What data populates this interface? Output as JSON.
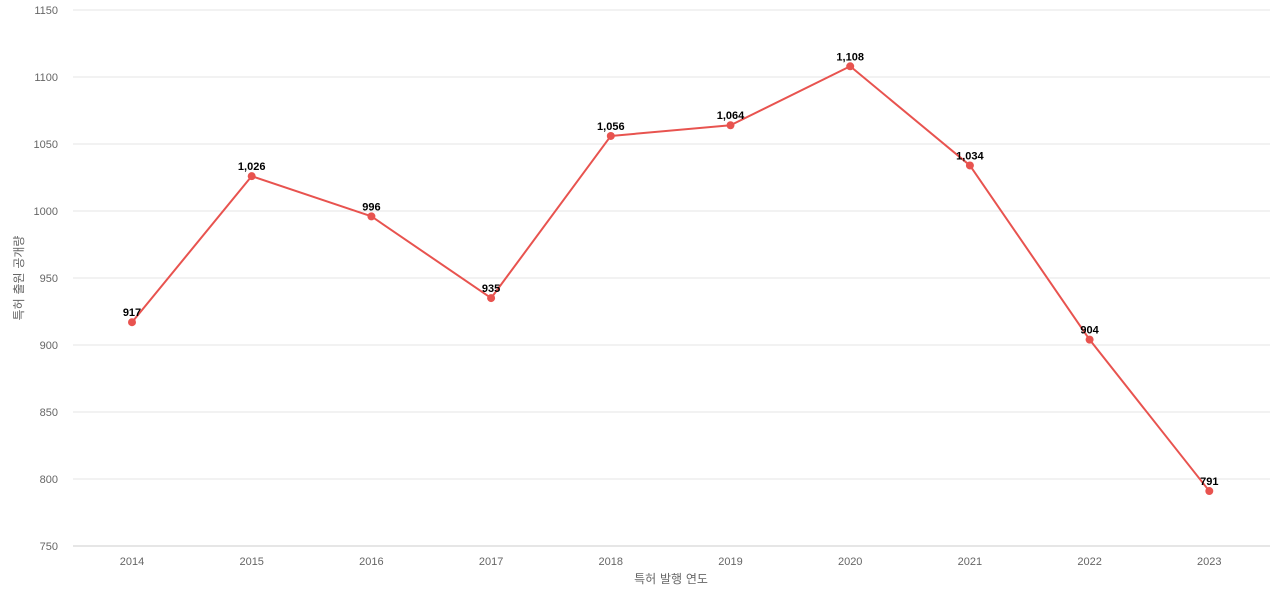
{
  "chart_data": {
    "type": "line",
    "title": "",
    "xlabel": "특허 발행 연도",
    "ylabel": "특허 출원 공개량",
    "categories": [
      "2014",
      "2015",
      "2016",
      "2017",
      "2018",
      "2019",
      "2020",
      "2021",
      "2022",
      "2023"
    ],
    "series": [
      {
        "values": [
          917,
          1026,
          996,
          935,
          1056,
          1064,
          1108,
          1034,
          904,
          791
        ],
        "labels": [
          "917",
          "1,026",
          "996",
          "935",
          "1,056",
          "1,064",
          "1,108",
          "1,034",
          "904",
          "791"
        ],
        "color": "#e8534f"
      }
    ],
    "ylim": [
      750,
      1150
    ],
    "yticks": [
      "750",
      "800",
      "850",
      "900",
      "950",
      "1000",
      "1050",
      "1100",
      "1150"
    ],
    "grid": true,
    "legend": "none"
  }
}
